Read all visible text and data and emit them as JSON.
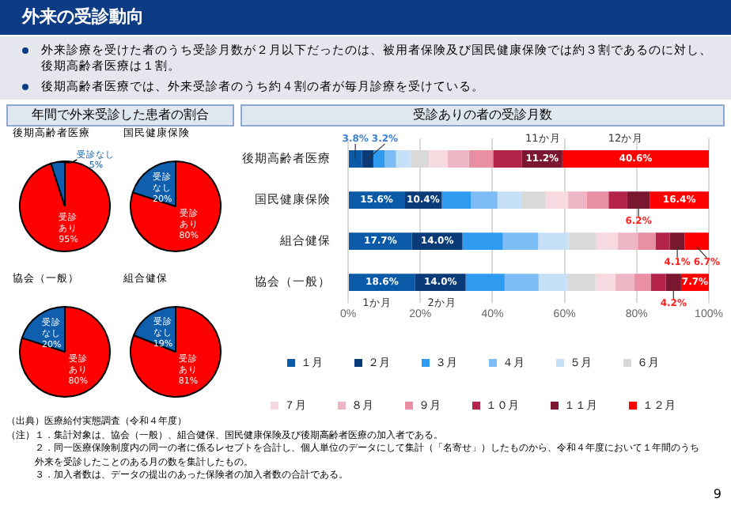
{
  "chart_data": [
    {
      "type": "other",
      "title": "外来の受診動向",
      "annotations": [
        "外来診療を受けた者のうち受診月数が２月以下だったのは、被用者保険及び国民健康保険では約３割であるのに対し、後期高齢者医療は１割。",
        "後期高齢者医療では、外来受診者のうち約４割の者が毎月診療を受けている。"
      ]
    },
    {
      "type": "pie",
      "subtitle": "年間で外来受診した患者の割合",
      "title": "後期高齢者医療",
      "categories": [
        "受診あり",
        "受診なし"
      ],
      "values": [
        95,
        5
      ],
      "colors": [
        "#ff0000",
        "#0f5fae"
      ],
      "value_labels": [
        "95%",
        "5%"
      ]
    },
    {
      "type": "pie",
      "title": "国民健康保険",
      "categories": [
        "受診あり",
        "受診なし"
      ],
      "values": [
        80,
        20
      ],
      "colors": [
        "#ff0000",
        "#0f5fae"
      ],
      "value_labels": [
        "80%",
        "20%"
      ]
    },
    {
      "type": "pie",
      "title": "協会（一般）",
      "categories": [
        "受診あり",
        "受診なし"
      ],
      "values": [
        80,
        20
      ],
      "colors": [
        "#ff0000",
        "#0f5fae"
      ],
      "value_labels": [
        "80%",
        "20%"
      ]
    },
    {
      "type": "pie",
      "title": "組合健保",
      "categories": [
        "受診あり",
        "受診なし"
      ],
      "values": [
        81,
        19
      ],
      "colors": [
        "#ff0000",
        "#0f5fae"
      ],
      "value_labels": [
        "81%",
        "19%"
      ]
    },
    {
      "type": "bar",
      "title": "受診ありの者の受診月数",
      "orientation": "horizontal",
      "stacked": true,
      "categories": [
        "後期高齢者医療",
        "国民健康保険",
        "組合健保",
        "協会（一般）"
      ],
      "series": [
        {
          "name": "１月",
          "color": "#0b5aa8",
          "values": [
            3.8,
            15.6,
            17.7,
            18.6
          ],
          "value_labels": [
            "3.8%",
            "15.6%",
            "17.7%",
            "18.6%"
          ]
        },
        {
          "name": "２月",
          "color": "#0a3a78",
          "values": [
            3.2,
            10.4,
            14.0,
            14.0
          ],
          "value_labels": [
            "3.2%",
            "10.4%",
            "14.0%",
            "14.0%"
          ]
        },
        {
          "name": "３月",
          "color": "#2e9bf0",
          "values": [
            3.1,
            8.0,
            11.2,
            10.8
          ]
        },
        {
          "name": "４月",
          "color": "#7dbcf5",
          "values": [
            3.2,
            7.4,
            9.8,
            9.4
          ]
        },
        {
          "name": "５月",
          "color": "#c5e0f7",
          "values": [
            4.2,
            6.6,
            8.4,
            8.1
          ]
        },
        {
          "name": "６月",
          "color": "#d9d9d9",
          "values": [
            4.9,
            6.6,
            7.7,
            7.7
          ]
        },
        {
          "name": "７月",
          "color": "#f7d9e0",
          "values": [
            5.2,
            6.4,
            6.0,
            5.5
          ]
        },
        {
          "name": "８月",
          "color": "#eeb6c4",
          "values": [
            5.9,
            5.2,
            5.5,
            5.3
          ]
        },
        {
          "name": "９月",
          "color": "#e88fa3",
          "values": [
            6.7,
            6.0,
            4.9,
            4.5
          ]
        },
        {
          "name": "１０月",
          "color": "#b3234a",
          "values": [
            8.0,
            5.2,
            4.0,
            4.2
          ]
        },
        {
          "name": "１１月",
          "color": "#7a1630",
          "values": [
            11.2,
            6.2,
            4.1,
            4.2
          ],
          "value_labels": [
            "11.2%",
            "6.2%",
            "4.1%",
            "4.2%"
          ]
        },
        {
          "name": "１２月",
          "color": "#ff0000",
          "values": [
            40.6,
            16.4,
            6.7,
            7.7
          ],
          "value_labels": [
            "40.6%",
            "16.4%",
            "6.7%",
            "7.7%"
          ]
        }
      ],
      "xlim": [
        0,
        100
      ],
      "xticks": [
        {
          "value": 0,
          "label": "0%"
        },
        {
          "value": 20,
          "label": "20%"
        },
        {
          "value": 40,
          "label": "40%"
        },
        {
          "value": 60,
          "label": "60%"
        },
        {
          "value": 80,
          "label": "80%"
        },
        {
          "value": 100,
          "label": "100%"
        }
      ],
      "grid": "x",
      "legend": "bottom",
      "annotations": [
        "11か月",
        "12か月",
        "1か月",
        "2か月"
      ]
    },
    {
      "type": "other",
      "annotations": [
        "（出典）医療給付実態調査（令和４年度）",
        "（注）１．集計対象は、協会（一般）、組合健保、国民健康保険及び後期高齢者医療の加入者である。",
        "２．同一医療保険制度内の同一の者に係るレセプトを合計し、個人単位のデータにして集計（「名寄せ」）したものから、令和４年度において１年間のうち外来を受診したことのある月の数を集計したもの。",
        "３．加入者数は、データの提出のあった保険者の加入者数の合計である。",
        "9"
      ]
    }
  ]
}
